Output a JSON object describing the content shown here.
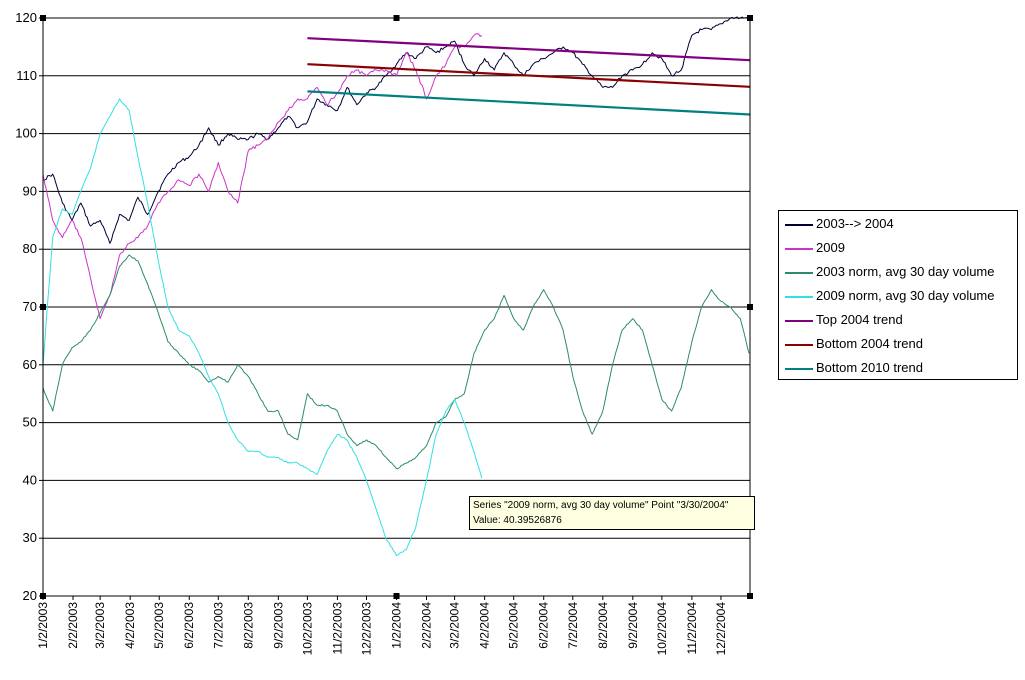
{
  "chart_data": {
    "type": "line",
    "title": "",
    "xlabel": "",
    "ylabel": "",
    "ylim": [
      20,
      120
    ],
    "yticks": [
      "20",
      "30",
      "40",
      "50",
      "60",
      "70",
      "80",
      "90",
      "100",
      "110",
      "120"
    ],
    "xlim": [
      "1/2/2003",
      "1/1/2005"
    ],
    "xticks": [
      "1/2/2003",
      "2/2/2003",
      "3/2/2003",
      "4/2/2003",
      "5/2/2003",
      "6/2/2003",
      "7/2/2003",
      "8/2/2003",
      "9/2/2003",
      "10/2/2003",
      "11/2/2003",
      "12/2/2003",
      "1/2/2004",
      "2/2/2004",
      "3/2/2004",
      "4/2/2004",
      "5/2/2004",
      "6/2/2004",
      "7/2/2004",
      "8/2/2004",
      "9/2/2004",
      "10/2/2004",
      "11/2/2004",
      "12/2/2004"
    ],
    "grid": "horizontal",
    "legend_position": "right",
    "series": [
      {
        "name": "2003--> 2004",
        "color": "#000033",
        "style": "line",
        "points": [
          [
            "1/2/2003",
            92
          ],
          [
            "1/12/2003",
            93
          ],
          [
            "1/22/2003",
            88
          ],
          [
            "2/1/2003",
            85
          ],
          [
            "2/10/2003",
            88
          ],
          [
            "2/20/2003",
            84
          ],
          [
            "3/2/2003",
            85
          ],
          [
            "3/12/2003",
            81
          ],
          [
            "3/22/2003",
            86
          ],
          [
            "4/1/2003",
            85
          ],
          [
            "4/10/2003",
            89
          ],
          [
            "4/20/2003",
            86
          ],
          [
            "5/1/2003",
            90
          ],
          [
            "5/11/2003",
            93
          ],
          [
            "5/22/2003",
            95
          ],
          [
            "6/2/2003",
            96
          ],
          [
            "6/12/2003",
            98
          ],
          [
            "6/22/2003",
            101
          ],
          [
            "7/2/2003",
            98
          ],
          [
            "7/12/2003",
            100
          ],
          [
            "7/22/2003",
            99
          ],
          [
            "8/2/2003",
            99
          ],
          [
            "8/12/2003",
            100
          ],
          [
            "8/22/2003",
            99
          ],
          [
            "9/2/2003",
            101
          ],
          [
            "9/12/2003",
            103
          ],
          [
            "9/22/2003",
            101
          ],
          [
            "10/2/2003",
            102
          ],
          [
            "10/12/2003",
            106
          ],
          [
            "10/22/2003",
            105
          ],
          [
            "11/2/2003",
            104
          ],
          [
            "11/12/2003",
            108
          ],
          [
            "11/22/2003",
            105
          ],
          [
            "12/2/2003",
            107
          ],
          [
            "12/12/2003",
            108
          ],
          [
            "12/22/2003",
            110
          ],
          [
            "1/2/2004",
            112
          ],
          [
            "1/12/2004",
            114
          ],
          [
            "1/22/2004",
            113
          ],
          [
            "2/2/2004",
            115
          ],
          [
            "2/12/2004",
            114
          ],
          [
            "2/22/2004",
            115
          ],
          [
            "3/2/2004",
            116
          ],
          [
            "3/12/2004",
            112
          ],
          [
            "3/22/2004",
            110
          ],
          [
            "4/2/2004",
            113
          ],
          [
            "4/12/2004",
            111
          ],
          [
            "4/22/2004",
            114
          ],
          [
            "5/2/2004",
            112
          ],
          [
            "5/12/2004",
            110
          ],
          [
            "5/22/2004",
            112
          ],
          [
            "6/2/2004",
            113
          ],
          [
            "6/12/2004",
            114
          ],
          [
            "6/22/2004",
            115
          ],
          [
            "7/2/2004",
            114
          ],
          [
            "7/12/2004",
            112
          ],
          [
            "7/22/2004",
            110
          ],
          [
            "8/2/2004",
            108
          ],
          [
            "8/12/2004",
            108
          ],
          [
            "8/22/2004",
            110
          ],
          [
            "9/2/2004",
            111
          ],
          [
            "9/12/2004",
            112
          ],
          [
            "9/22/2004",
            114
          ],
          [
            "10/2/2004",
            113
          ],
          [
            "10/12/2004",
            110
          ],
          [
            "10/22/2004",
            111
          ],
          [
            "11/2/2004",
            117
          ],
          [
            "11/12/2004",
            118
          ],
          [
            "11/22/2004",
            118
          ],
          [
            "12/2/2004",
            119
          ],
          [
            "12/12/2004",
            120
          ],
          [
            "12/22/2004",
            120
          ],
          [
            "12/31/2004",
            120
          ]
        ]
      },
      {
        "name": "2009",
        "color": "#cc33cc",
        "style": "line",
        "points": [
          [
            "1/2/2003",
            93
          ],
          [
            "1/12/2003",
            85
          ],
          [
            "1/22/2003",
            82
          ],
          [
            "2/1/2003",
            85
          ],
          [
            "2/10/2003",
            82
          ],
          [
            "2/20/2003",
            75
          ],
          [
            "3/2/2003",
            68
          ],
          [
            "3/12/2003",
            72
          ],
          [
            "3/22/2003",
            79
          ],
          [
            "4/1/2003",
            81
          ],
          [
            "4/10/2003",
            82
          ],
          [
            "4/20/2003",
            84
          ],
          [
            "5/1/2003",
            88
          ],
          [
            "5/11/2003",
            90
          ],
          [
            "5/22/2003",
            92
          ],
          [
            "6/2/2003",
            91
          ],
          [
            "6/12/2003",
            93
          ],
          [
            "6/22/2003",
            90
          ],
          [
            "7/2/2003",
            95
          ],
          [
            "7/12/2003",
            90
          ],
          [
            "7/22/2003",
            88
          ],
          [
            "8/2/2003",
            97
          ],
          [
            "8/12/2003",
            98
          ],
          [
            "8/22/2003",
            99
          ],
          [
            "9/2/2003",
            102
          ],
          [
            "9/12/2003",
            104
          ],
          [
            "9/22/2003",
            106
          ],
          [
            "10/2/2003",
            106
          ],
          [
            "10/12/2003",
            108
          ],
          [
            "10/22/2003",
            105
          ],
          [
            "11/2/2003",
            107
          ],
          [
            "11/12/2003",
            110
          ],
          [
            "11/22/2003",
            111
          ],
          [
            "12/2/2003",
            110
          ],
          [
            "12/12/2003",
            111
          ],
          [
            "12/22/2003",
            111
          ],
          [
            "1/2/2004",
            110
          ],
          [
            "1/12/2004",
            114
          ],
          [
            "1/22/2004",
            111
          ],
          [
            "2/2/2004",
            106
          ],
          [
            "2/12/2004",
            110
          ],
          [
            "2/22/2004",
            112
          ],
          [
            "3/2/2004",
            115
          ],
          [
            "3/12/2004",
            115
          ],
          [
            "3/22/2004",
            117
          ],
          [
            "3/30/2004",
            117
          ]
        ]
      },
      {
        "name": "2003 norm, avg 30 day volume",
        "color": "#2e8b6a",
        "style": "line",
        "points": [
          [
            "1/2/2003",
            56
          ],
          [
            "1/12/2003",
            52
          ],
          [
            "1/22/2003",
            60
          ],
          [
            "2/1/2003",
            63
          ],
          [
            "2/10/2003",
            64
          ],
          [
            "2/20/2003",
            66
          ],
          [
            "3/2/2003",
            69
          ],
          [
            "3/12/2003",
            72
          ],
          [
            "3/22/2003",
            77
          ],
          [
            "4/1/2003",
            79
          ],
          [
            "4/10/2003",
            78
          ],
          [
            "4/20/2003",
            74
          ],
          [
            "5/1/2003",
            69
          ],
          [
            "5/11/2003",
            64
          ],
          [
            "5/22/2003",
            62
          ],
          [
            "6/2/2003",
            60
          ],
          [
            "6/12/2003",
            59
          ],
          [
            "6/22/2003",
            57
          ],
          [
            "7/2/2003",
            58
          ],
          [
            "7/12/2003",
            57
          ],
          [
            "7/22/2003",
            60
          ],
          [
            "8/2/2003",
            58
          ],
          [
            "8/12/2003",
            55
          ],
          [
            "8/22/2003",
            52
          ],
          [
            "9/2/2003",
            52
          ],
          [
            "9/12/2003",
            48
          ],
          [
            "9/22/2003",
            47
          ],
          [
            "10/2/2003",
            55
          ],
          [
            "10/12/2003",
            53
          ],
          [
            "10/22/2003",
            53
          ],
          [
            "11/2/2003",
            52
          ],
          [
            "11/12/2003",
            48
          ],
          [
            "11/22/2003",
            46
          ],
          [
            "12/2/2003",
            47
          ],
          [
            "12/12/2003",
            46
          ],
          [
            "12/22/2003",
            44
          ],
          [
            "1/2/2004",
            42
          ],
          [
            "1/12/2004",
            43
          ],
          [
            "1/22/2004",
            44
          ],
          [
            "2/2/2004",
            46
          ],
          [
            "2/12/2004",
            50
          ],
          [
            "2/22/2004",
            51
          ],
          [
            "3/2/2004",
            54
          ],
          [
            "3/12/2004",
            55
          ],
          [
            "3/22/2004",
            62
          ],
          [
            "4/2/2004",
            66
          ],
          [
            "4/12/2004",
            68
          ],
          [
            "4/22/2004",
            72
          ],
          [
            "5/2/2004",
            68
          ],
          [
            "5/12/2004",
            66
          ],
          [
            "5/22/2004",
            70
          ],
          [
            "6/2/2004",
            73
          ],
          [
            "6/12/2004",
            70
          ],
          [
            "6/22/2004",
            66
          ],
          [
            "7/2/2004",
            58
          ],
          [
            "7/12/2004",
            52
          ],
          [
            "7/22/2004",
            48
          ],
          [
            "8/2/2004",
            52
          ],
          [
            "8/12/2004",
            60
          ],
          [
            "8/22/2004",
            66
          ],
          [
            "9/2/2004",
            68
          ],
          [
            "9/12/2004",
            66
          ],
          [
            "9/22/2004",
            60
          ],
          [
            "10/2/2004",
            54
          ],
          [
            "10/12/2004",
            52
          ],
          [
            "10/22/2004",
            56
          ],
          [
            "11/2/2004",
            64
          ],
          [
            "11/12/2004",
            70
          ],
          [
            "11/22/2004",
            73
          ],
          [
            "12/2/2004",
            71
          ],
          [
            "12/12/2004",
            70
          ],
          [
            "12/22/2004",
            68
          ],
          [
            "12/31/2004",
            62
          ]
        ]
      },
      {
        "name": "2009 norm, avg 30 day volume",
        "color": "#33e0e0",
        "style": "line",
        "points": [
          [
            "1/2/2003",
            60
          ],
          [
            "1/12/2003",
            82
          ],
          [
            "1/22/2003",
            87
          ],
          [
            "2/1/2003",
            86
          ],
          [
            "2/10/2003",
            90
          ],
          [
            "2/20/2003",
            94
          ],
          [
            "3/2/2003",
            100
          ],
          [
            "3/12/2003",
            103
          ],
          [
            "3/22/2003",
            106
          ],
          [
            "4/1/2003",
            104
          ],
          [
            "4/10/2003",
            96
          ],
          [
            "4/20/2003",
            88
          ],
          [
            "5/1/2003",
            78
          ],
          [
            "5/11/2003",
            70
          ],
          [
            "5/22/2003",
            66
          ],
          [
            "6/2/2003",
            65
          ],
          [
            "6/12/2003",
            62
          ],
          [
            "6/22/2003",
            58
          ],
          [
            "7/2/2003",
            55
          ],
          [
            "7/12/2003",
            50
          ],
          [
            "7/22/2003",
            47
          ],
          [
            "8/2/2003",
            45
          ],
          [
            "8/12/2003",
            45
          ],
          [
            "8/22/2003",
            44
          ],
          [
            "9/2/2003",
            44
          ],
          [
            "9/12/2003",
            43
          ],
          [
            "9/22/2003",
            43
          ],
          [
            "10/2/2003",
            42
          ],
          [
            "10/12/2003",
            41
          ],
          [
            "10/22/2003",
            45
          ],
          [
            "11/2/2003",
            48
          ],
          [
            "11/12/2003",
            47
          ],
          [
            "11/22/2003",
            44
          ],
          [
            "12/2/2003",
            40
          ],
          [
            "12/12/2003",
            35
          ],
          [
            "12/22/2003",
            30
          ],
          [
            "1/2/2004",
            27
          ],
          [
            "1/12/2004",
            28
          ],
          [
            "1/22/2004",
            32
          ],
          [
            "2/2/2004",
            40
          ],
          [
            "2/12/2004",
            48
          ],
          [
            "2/22/2004",
            52
          ],
          [
            "3/2/2004",
            54
          ],
          [
            "3/12/2004",
            50
          ],
          [
            "3/22/2004",
            45
          ],
          [
            "3/30/2004",
            40.4
          ]
        ]
      },
      {
        "name": "Top 2004 trend",
        "color": "#800080",
        "style": "trend",
        "points": [
          [
            "10/2/2003",
            116.5
          ],
          [
            "1/1/2005",
            112.7
          ]
        ]
      },
      {
        "name": "Bottom 2004 trend",
        "color": "#8b0000",
        "style": "trend",
        "points": [
          [
            "10/2/2003",
            112
          ],
          [
            "1/1/2005",
            108.1
          ]
        ]
      },
      {
        "name": "Bottom 2010 trend",
        "color": "#008080",
        "style": "trend",
        "points": [
          [
            "10/2/2003",
            107.3
          ],
          [
            "1/1/2005",
            103.3
          ]
        ]
      }
    ],
    "tooltip": {
      "line1": "Series \"2009 norm, avg 30 day volume\" Point \"3/30/2004\"",
      "line2": "Value: 40.39526876"
    }
  }
}
